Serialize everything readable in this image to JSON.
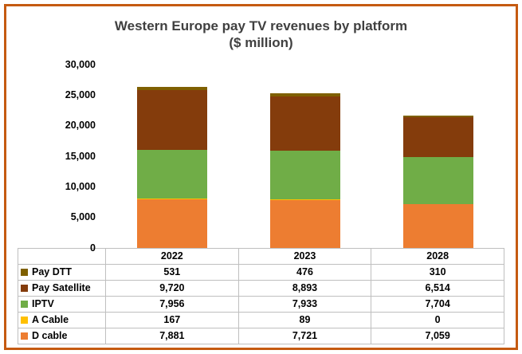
{
  "colors": {
    "frame_border": "#C55A11",
    "title_text": "#404040",
    "table_border": "#BFBFBF"
  },
  "chart_data": {
    "type": "bar",
    "stacked": true,
    "title": "Western Europe pay TV revenues by platform",
    "subtitle": "($ million)",
    "categories": [
      "2022",
      "2023",
      "2028"
    ],
    "series": [
      {
        "name": "Pay DTT",
        "color": "#7F6000",
        "values": [
          531,
          476,
          310
        ]
      },
      {
        "name": "Pay Satellite",
        "color": "#843C0C",
        "values": [
          9720,
          8893,
          6514
        ]
      },
      {
        "name": "IPTV",
        "color": "#70AD47",
        "values": [
          7956,
          7933,
          7704
        ]
      },
      {
        "name": "A Cable",
        "color": "#FFC000",
        "values": [
          167,
          89,
          0
        ]
      },
      {
        "name": "D cable",
        "color": "#ED7D31",
        "values": [
          7881,
          7721,
          7059
        ]
      }
    ],
    "ylim": [
      0,
      30000
    ],
    "yticks": [
      0,
      5000,
      10000,
      15000,
      20000,
      25000,
      30000
    ],
    "legend_position": "table-left",
    "grid": false
  }
}
